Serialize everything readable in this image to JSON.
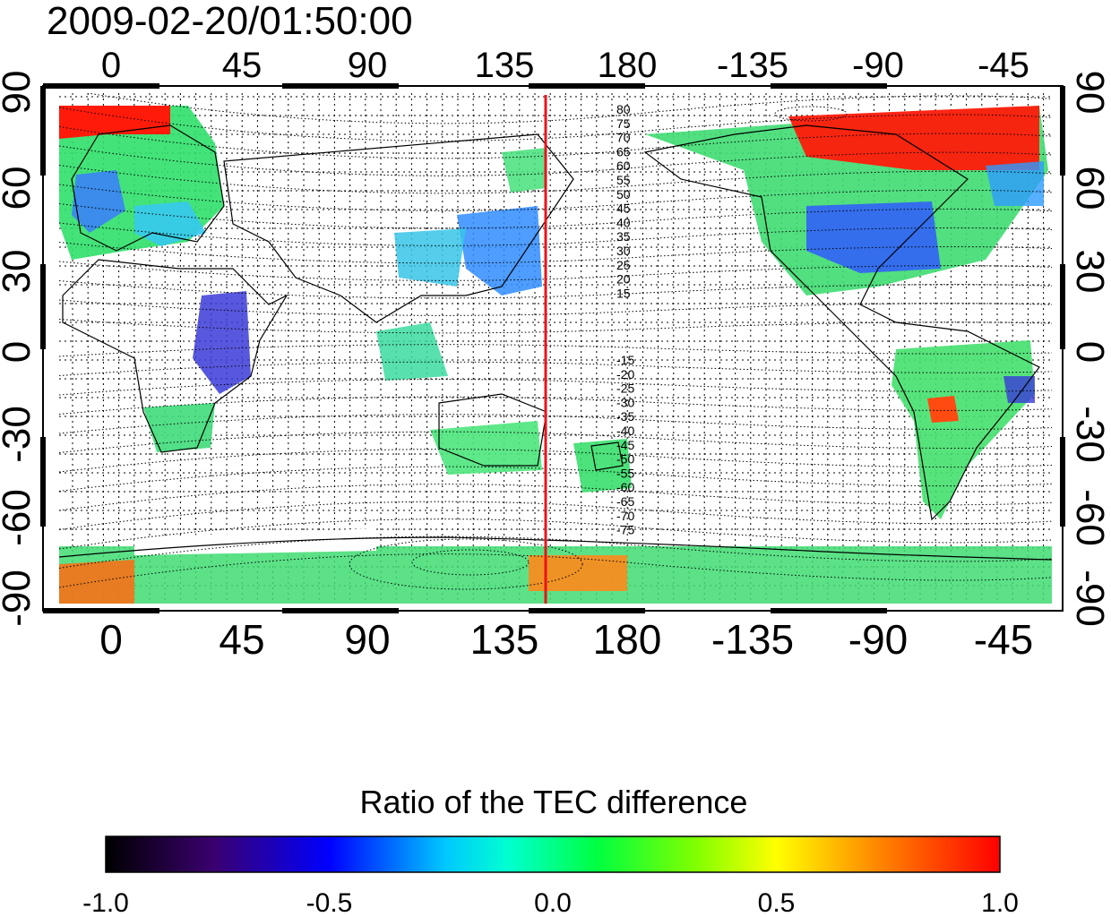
{
  "timestamp": "2009-02-20/01:50:00",
  "top_axis_labels": [
    "0",
    "45",
    "90",
    "135",
    "180",
    "-135",
    "-90",
    "-45"
  ],
  "bottom_axis_labels": [
    "0",
    "45",
    "90",
    "135",
    "180",
    "-135",
    "-90",
    "-45"
  ],
  "left_axis_labels": [
    "90",
    "60",
    "30",
    "0",
    "-30",
    "-60",
    "-90"
  ],
  "right_axis_labels": [
    "90",
    "60",
    "30",
    "0",
    "-30",
    "-60",
    "-90"
  ],
  "contour_labels_north": [
    "80",
    "75",
    "70",
    "65",
    "60",
    "55",
    "50",
    "45",
    "40",
    "35",
    "30",
    "25",
    "20",
    "15"
  ],
  "contour_labels_south": [
    "-15",
    "-20",
    "-25",
    "-30",
    "-35",
    "-40",
    "-45",
    "-50",
    "-55",
    "-60",
    "-65",
    "-70",
    "-75"
  ],
  "marker_longitude": 150,
  "marker_color": "#e8141a",
  "colorbar": {
    "title": "Ratio of the TEC difference",
    "tick_labels": [
      "-1.0",
      "-0.5",
      "0.0",
      "0.5",
      "1.0"
    ],
    "range": [
      -1.0,
      1.0
    ],
    "colors": [
      "#000000",
      "#3a006e",
      "#0000ff",
      "#00ffff",
      "#00ff00",
      "#ffff00",
      "#ff8000",
      "#ff0000"
    ]
  }
}
